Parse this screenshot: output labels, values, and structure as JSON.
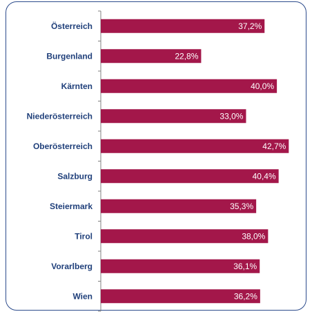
{
  "chart_data": {
    "type": "bar",
    "orientation": "horizontal",
    "categories": [
      "Österreich",
      "Burgenland",
      "Kärnten",
      "Niederösterreich",
      "Oberösterreich",
      "Salzburg",
      "Steiermark",
      "Tirol",
      "Vorarlberg",
      "Wien"
    ],
    "values": [
      37.2,
      22.8,
      40.0,
      33.0,
      42.7,
      40.4,
      35.3,
      38.0,
      36.1,
      36.2
    ],
    "value_labels": [
      "37,2%",
      "22,8%",
      "40,0%",
      "33,0%",
      "42,7%",
      "40,4%",
      "35,3%",
      "38,0%",
      "36,1%",
      "36,2%"
    ],
    "xlim": [
      0,
      45
    ],
    "bar_color": "#a3174a",
    "label_color": "#1f3f7a",
    "border_color": "#2b4a8b",
    "grid": false,
    "title": "",
    "xlabel": "",
    "ylabel": ""
  }
}
